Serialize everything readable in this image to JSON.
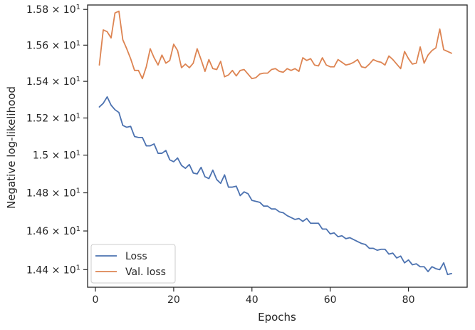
{
  "chart_data": {
    "type": "line",
    "title": "",
    "xlabel": "Epochs",
    "ylabel": "Negative log-likelihood",
    "xlim": [
      -2,
      95
    ],
    "ylim": [
      14.31,
      15.825
    ],
    "yscale": "log",
    "grid": false,
    "legend_position": "lower-left",
    "x_ticks": [
      0,
      20,
      40,
      60,
      80
    ],
    "x_tick_labels": [
      "0",
      "20",
      "40",
      "60",
      "80"
    ],
    "y_ticks": [
      14.4,
      14.6,
      14.8,
      15.0,
      15.2,
      15.4,
      15.6,
      15.8
    ],
    "y_tick_labels": [
      {
        "mantissa": "1.44",
        "sep": "×",
        "base": "10",
        "exp": "1"
      },
      {
        "mantissa": "1.46",
        "sep": "×",
        "base": "10",
        "exp": "1"
      },
      {
        "mantissa": "1.48",
        "sep": "×",
        "base": "10",
        "exp": "1"
      },
      {
        "mantissa": "1.5",
        "sep": "×",
        "base": "10",
        "exp": "1"
      },
      {
        "mantissa": "1.52",
        "sep": "×",
        "base": "10",
        "exp": "1"
      },
      {
        "mantissa": "1.54",
        "sep": "×",
        "base": "10",
        "exp": "1"
      },
      {
        "mantissa": "1.56",
        "sep": "×",
        "base": "10",
        "exp": "1"
      },
      {
        "mantissa": "1.58",
        "sep": "×",
        "base": "10",
        "exp": "1"
      }
    ],
    "x": [
      1,
      2,
      3,
      4,
      5,
      6,
      7,
      8,
      9,
      10,
      11,
      12,
      13,
      14,
      15,
      16,
      17,
      18,
      19,
      20,
      21,
      22,
      23,
      24,
      25,
      26,
      27,
      28,
      29,
      30,
      31,
      32,
      33,
      34,
      35,
      36,
      37,
      38,
      39,
      40,
      41,
      42,
      43,
      44,
      45,
      46,
      47,
      48,
      49,
      50,
      51,
      52,
      53,
      54,
      55,
      56,
      57,
      58,
      59,
      60,
      61,
      62,
      63,
      64,
      65,
      66,
      67,
      68,
      69,
      70,
      71,
      72,
      73,
      74,
      75,
      76,
      77,
      78,
      79,
      80,
      81,
      82,
      83,
      84,
      85,
      86,
      87,
      88,
      89,
      90,
      91
    ],
    "series": [
      {
        "name": "Loss",
        "color": "#4c72b0",
        "values": [
          15.26,
          15.28,
          15.315,
          15.27,
          15.245,
          15.23,
          15.16,
          15.15,
          15.155,
          15.1,
          15.095,
          15.095,
          15.05,
          15.05,
          15.06,
          15.01,
          15.01,
          15.025,
          14.975,
          14.965,
          14.985,
          14.945,
          14.93,
          14.95,
          14.905,
          14.9,
          14.935,
          14.885,
          14.875,
          14.92,
          14.87,
          14.85,
          14.895,
          14.83,
          14.83,
          14.835,
          14.785,
          14.805,
          14.795,
          14.76,
          14.755,
          14.75,
          14.73,
          14.73,
          14.715,
          14.715,
          14.7,
          14.695,
          14.68,
          14.67,
          14.66,
          14.665,
          14.65,
          14.665,
          14.64,
          14.64,
          14.64,
          14.61,
          14.61,
          14.585,
          14.59,
          14.57,
          14.575,
          14.56,
          14.565,
          14.555,
          14.545,
          14.535,
          14.53,
          14.51,
          14.51,
          14.5,
          14.505,
          14.505,
          14.48,
          14.485,
          14.46,
          14.47,
          14.435,
          14.45,
          14.425,
          14.43,
          14.415,
          14.415,
          14.39,
          14.415,
          14.405,
          14.4,
          14.435,
          14.375,
          14.38
        ]
      },
      {
        "name": "Val. loss",
        "color": "#dd8452",
        "values": [
          15.49,
          15.685,
          15.675,
          15.64,
          15.78,
          15.79,
          15.63,
          15.58,
          15.525,
          15.46,
          15.46,
          15.415,
          15.48,
          15.58,
          15.53,
          15.49,
          15.545,
          15.5,
          15.515,
          15.605,
          15.57,
          15.475,
          15.495,
          15.475,
          15.5,
          15.58,
          15.52,
          15.455,
          15.52,
          15.47,
          15.465,
          15.51,
          15.425,
          15.435,
          15.46,
          15.43,
          15.46,
          15.465,
          15.44,
          15.415,
          15.42,
          15.44,
          15.445,
          15.445,
          15.465,
          15.47,
          15.455,
          15.45,
          15.47,
          15.46,
          15.47,
          15.455,
          15.53,
          15.515,
          15.525,
          15.49,
          15.485,
          15.53,
          15.49,
          15.48,
          15.48,
          15.52,
          15.505,
          15.49,
          15.495,
          15.505,
          15.52,
          15.48,
          15.475,
          15.495,
          15.52,
          15.51,
          15.505,
          15.49,
          15.54,
          15.52,
          15.495,
          15.47,
          15.565,
          15.525,
          15.495,
          15.5,
          15.59,
          15.5,
          15.545,
          15.57,
          15.585,
          15.69,
          15.575,
          15.565,
          15.555
        ]
      }
    ]
  }
}
